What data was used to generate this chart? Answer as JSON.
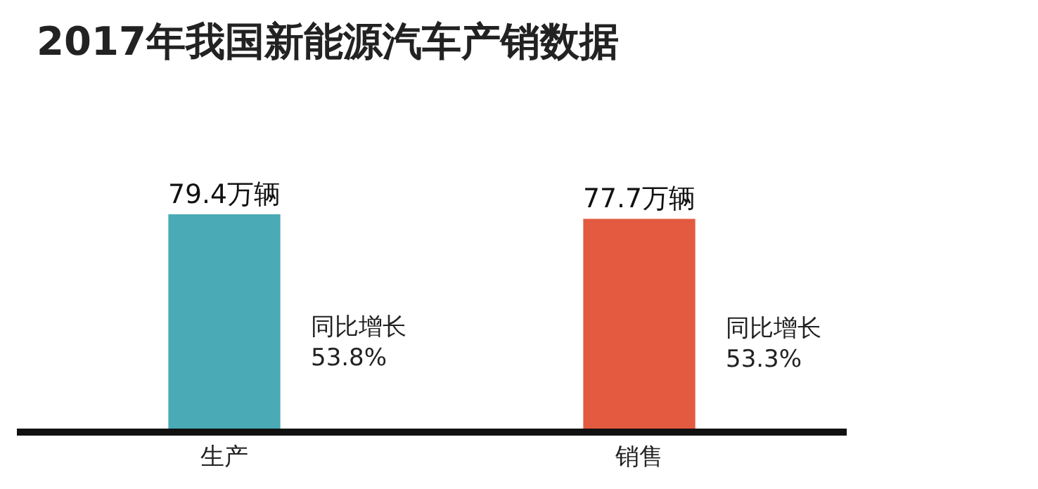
{
  "chart_data": {
    "type": "bar",
    "title": "2017年我国新能源汽车产销数据",
    "categories": [
      "生产",
      "销售"
    ],
    "values": [
      79.4,
      77.7
    ],
    "colors": [
      "#4aaab5",
      "#e35a40"
    ],
    "value_labels": [
      "79.4万辆",
      "77.7万辆"
    ],
    "annotations": [
      "同比增长\n53.8%",
      "同比增长\n53.3%"
    ],
    "legend": false
  }
}
